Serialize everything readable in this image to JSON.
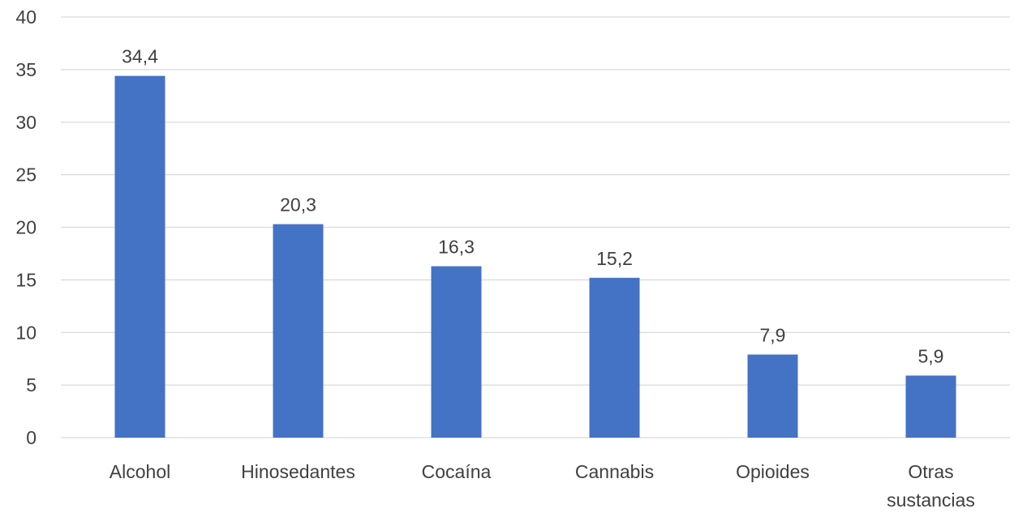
{
  "chart_data": {
    "type": "bar",
    "title": "",
    "xlabel": "",
    "ylabel": "",
    "categories": [
      [
        "Alcohol"
      ],
      [
        "Hinosedantes"
      ],
      [
        "Cocaína"
      ],
      [
        "Cannabis"
      ],
      [
        "Opioides"
      ],
      [
        "Otras",
        "sustancias"
      ]
    ],
    "values": [
      34.4,
      20.3,
      16.3,
      15.2,
      7.9,
      5.9
    ],
    "value_labels": [
      "34,4",
      "20,3",
      "16,3",
      "15,2",
      "7,9",
      "5,9"
    ],
    "ylim": [
      0,
      40
    ],
    "yticks": [
      0,
      5,
      10,
      15,
      20,
      25,
      30,
      35,
      40
    ],
    "grid": true,
    "legend": "none",
    "colors": {
      "bar": "#4472c4",
      "grid": "#d9d9d9",
      "text": "#404040"
    }
  }
}
